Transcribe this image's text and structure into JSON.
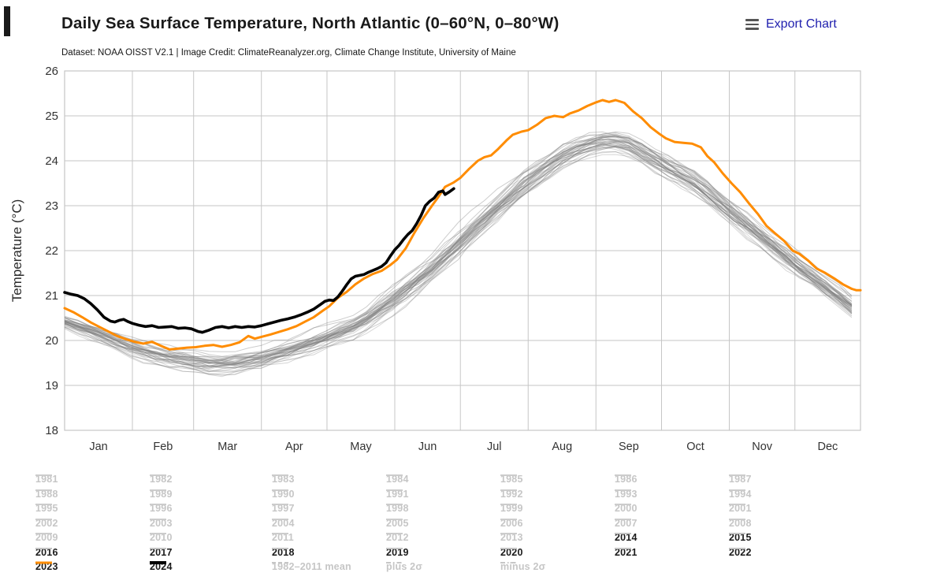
{
  "header": {
    "title": "Daily Sea Surface Temperature, North Atlantic (0–60°N, 0–80°W)",
    "subtitle": "Dataset: NOAA OISST V2.1 | Image Credit: ClimateReanalyzer.org, Climate Change Institute, University of Maine",
    "export_label": "Export Chart"
  },
  "chart_data": {
    "type": "line",
    "title": "Daily Sea Surface Temperature, North Atlantic (0–60°N, 0–80°W)",
    "xlabel": "",
    "ylabel": "Temperature (°C)",
    "ylim": [
      18,
      26
    ],
    "yticks": [
      18,
      19,
      20,
      21,
      22,
      23,
      24,
      25,
      26
    ],
    "xticklabels": [
      "Jan",
      "Feb",
      "Mar",
      "Apr",
      "May",
      "Jun",
      "Jul",
      "Aug",
      "Sep",
      "Oct",
      "Nov",
      "Dec"
    ],
    "month_start_days": [
      0,
      31,
      59,
      90,
      120,
      151,
      181,
      212,
      243,
      273,
      304,
      334,
      364
    ],
    "grid": true,
    "legend_position": "bottom",
    "colors": {
      "grid": "#c6c6c6",
      "axis_text": "#333333",
      "background_lines": "#c8c8c8",
      "y2023": "#ff8c00",
      "y2024": "#000000"
    },
    "series": [
      {
        "name": "2023",
        "color": "#ff8c00",
        "width": 3,
        "points": [
          [
            0,
            20.72
          ],
          [
            4,
            20.63
          ],
          [
            8,
            20.52
          ],
          [
            12,
            20.4
          ],
          [
            16,
            20.3
          ],
          [
            20,
            20.2
          ],
          [
            24,
            20.1
          ],
          [
            28,
            20.03
          ],
          [
            32,
            19.97
          ],
          [
            36,
            19.93
          ],
          [
            40,
            19.97
          ],
          [
            44,
            19.88
          ],
          [
            48,
            19.8
          ],
          [
            52,
            19.82
          ],
          [
            56,
            19.84
          ],
          [
            60,
            19.85
          ],
          [
            64,
            19.88
          ],
          [
            68,
            19.9
          ],
          [
            72,
            19.86
          ],
          [
            76,
            19.9
          ],
          [
            80,
            19.96
          ],
          [
            84,
            20.1
          ],
          [
            87,
            20.04
          ],
          [
            90,
            20.08
          ],
          [
            94,
            20.13
          ],
          [
            98,
            20.19
          ],
          [
            102,
            20.25
          ],
          [
            106,
            20.32
          ],
          [
            110,
            20.42
          ],
          [
            114,
            20.52
          ],
          [
            118,
            20.66
          ],
          [
            121,
            20.76
          ],
          [
            125,
            20.95
          ],
          [
            129,
            21.08
          ],
          [
            133,
            21.25
          ],
          [
            137,
            21.38
          ],
          [
            141,
            21.48
          ],
          [
            145,
            21.55
          ],
          [
            149,
            21.68
          ],
          [
            152,
            21.8
          ],
          [
            156,
            22.05
          ],
          [
            160,
            22.4
          ],
          [
            164,
            22.72
          ],
          [
            168,
            23.0
          ],
          [
            171,
            23.2
          ],
          [
            174,
            23.42
          ],
          [
            178,
            23.52
          ],
          [
            181,
            23.62
          ],
          [
            185,
            23.82
          ],
          [
            189,
            24.0
          ],
          [
            192,
            24.08
          ],
          [
            195,
            24.12
          ],
          [
            198,
            24.25
          ],
          [
            202,
            24.45
          ],
          [
            205,
            24.58
          ],
          [
            209,
            24.65
          ],
          [
            212,
            24.68
          ],
          [
            216,
            24.8
          ],
          [
            220,
            24.95
          ],
          [
            224,
            25.0
          ],
          [
            228,
            24.97
          ],
          [
            231,
            25.05
          ],
          [
            235,
            25.12
          ],
          [
            239,
            25.22
          ],
          [
            243,
            25.3
          ],
          [
            246,
            25.35
          ],
          [
            249,
            25.31
          ],
          [
            252,
            25.35
          ],
          [
            256,
            25.29
          ],
          [
            260,
            25.1
          ],
          [
            264,
            24.95
          ],
          [
            268,
            24.75
          ],
          [
            272,
            24.6
          ],
          [
            275,
            24.5
          ],
          [
            279,
            24.42
          ],
          [
            283,
            24.4
          ],
          [
            287,
            24.38
          ],
          [
            291,
            24.3
          ],
          [
            294,
            24.1
          ],
          [
            297,
            23.97
          ],
          [
            301,
            23.72
          ],
          [
            305,
            23.5
          ],
          [
            309,
            23.3
          ],
          [
            313,
            23.05
          ],
          [
            317,
            22.82
          ],
          [
            321,
            22.55
          ],
          [
            325,
            22.38
          ],
          [
            329,
            22.22
          ],
          [
            333,
            22.0
          ],
          [
            336,
            21.93
          ],
          [
            340,
            21.78
          ],
          [
            344,
            21.6
          ],
          [
            348,
            21.5
          ],
          [
            352,
            21.38
          ],
          [
            356,
            21.25
          ],
          [
            360,
            21.15
          ],
          [
            362,
            21.12
          ],
          [
            364,
            21.12
          ]
        ]
      },
      {
        "name": "2024",
        "color": "#000000",
        "width": 3.6,
        "points": [
          [
            0,
            21.07
          ],
          [
            3,
            21.03
          ],
          [
            6,
            21.0
          ],
          [
            9,
            20.93
          ],
          [
            12,
            20.82
          ],
          [
            15,
            20.68
          ],
          [
            18,
            20.52
          ],
          [
            21,
            20.43
          ],
          [
            23,
            20.41
          ],
          [
            25,
            20.45
          ],
          [
            27,
            20.47
          ],
          [
            29,
            20.42
          ],
          [
            31,
            20.38
          ],
          [
            34,
            20.34
          ],
          [
            37,
            20.31
          ],
          [
            40,
            20.33
          ],
          [
            43,
            20.29
          ],
          [
            46,
            20.3
          ],
          [
            49,
            20.31
          ],
          [
            52,
            20.27
          ],
          [
            55,
            20.28
          ],
          [
            58,
            20.26
          ],
          [
            61,
            20.2
          ],
          [
            63,
            20.18
          ],
          [
            66,
            20.23
          ],
          [
            69,
            20.29
          ],
          [
            72,
            20.31
          ],
          [
            75,
            20.28
          ],
          [
            78,
            20.31
          ],
          [
            81,
            20.29
          ],
          [
            84,
            20.31
          ],
          [
            87,
            20.3
          ],
          [
            90,
            20.33
          ],
          [
            93,
            20.37
          ],
          [
            96,
            20.41
          ],
          [
            99,
            20.45
          ],
          [
            102,
            20.48
          ],
          [
            105,
            20.52
          ],
          [
            108,
            20.57
          ],
          [
            111,
            20.63
          ],
          [
            114,
            20.7
          ],
          [
            117,
            20.8
          ],
          [
            119,
            20.87
          ],
          [
            121,
            20.9
          ],
          [
            123,
            20.89
          ],
          [
            125,
            20.97
          ],
          [
            127,
            21.1
          ],
          [
            129,
            21.24
          ],
          [
            131,
            21.37
          ],
          [
            133,
            21.43
          ],
          [
            135,
            21.45
          ],
          [
            137,
            21.47
          ],
          [
            139,
            21.52
          ],
          [
            141,
            21.56
          ],
          [
            143,
            21.6
          ],
          [
            145,
            21.65
          ],
          [
            147,
            21.73
          ],
          [
            149,
            21.88
          ],
          [
            151,
            22.02
          ],
          [
            153,
            22.12
          ],
          [
            155,
            22.25
          ],
          [
            157,
            22.36
          ],
          [
            159,
            22.45
          ],
          [
            161,
            22.6
          ],
          [
            163,
            22.78
          ],
          [
            165,
            23.0
          ],
          [
            167,
            23.1
          ],
          [
            169,
            23.17
          ],
          [
            171,
            23.3
          ],
          [
            173,
            23.33
          ],
          [
            174,
            23.25
          ],
          [
            176,
            23.31
          ],
          [
            178,
            23.38
          ]
        ]
      }
    ],
    "background_years": {
      "years": [
        1981,
        1982,
        1983,
        1984,
        1985,
        1986,
        1987,
        1988,
        1989,
        1990,
        1991,
        1992,
        1993,
        1994,
        1995,
        1996,
        1997,
        1998,
        1999,
        2000,
        2001,
        2002,
        2003,
        2004,
        2005,
        2006,
        2007,
        2008,
        2009,
        2010,
        2011,
        2012,
        2013,
        2014,
        2015,
        2016,
        2017,
        2018,
        2019,
        2020,
        2021,
        2022
      ],
      "envelope": {
        "days": [
          0,
          15,
          31,
          45,
          59,
          68,
          80,
          90,
          105,
          120,
          135,
          151,
          166,
          181,
          196,
          212,
          227,
          243,
          250,
          258,
          273,
          288,
          304,
          319,
          334,
          349,
          364
        ],
        "min": [
          20.2,
          19.9,
          19.55,
          19.35,
          19.22,
          19.15,
          19.2,
          19.3,
          19.5,
          19.75,
          20.0,
          20.55,
          21.1,
          21.8,
          22.5,
          23.15,
          23.7,
          24.1,
          24.15,
          24.05,
          23.6,
          23.15,
          22.55,
          21.95,
          21.35,
          20.85,
          20.3
        ],
        "max": [
          20.68,
          20.45,
          20.2,
          20.0,
          19.9,
          19.85,
          19.9,
          19.95,
          20.15,
          20.45,
          20.8,
          21.4,
          22.0,
          22.7,
          23.35,
          24.05,
          24.5,
          24.8,
          24.85,
          24.75,
          24.4,
          24.0,
          23.35,
          22.75,
          22.15,
          21.55,
          20.95
        ]
      }
    },
    "legend_styles": {
      "old": {
        "swatch_color": "#cccccc",
        "label_color": "#c6c6c6",
        "dash": "solid",
        "swatch_width": 2
      },
      "recent": {
        "swatch_color": "#c2c2c2",
        "label_color": "#1a1a1a",
        "dash": "solid",
        "swatch_width": 2
      },
      "y2023": {
        "swatch_color": "#ff8c00",
        "label_color": "#1a1a1a",
        "dash": "solid",
        "swatch_width": 3
      },
      "y2024": {
        "swatch_color": "#000000",
        "label_color": "#1a1a1a",
        "dash": "solid",
        "swatch_width": 4
      },
      "mean": {
        "swatch_color": "#c6c6c6",
        "label_color": "#c6c6c6",
        "dash": "dashed",
        "swatch_width": 2
      },
      "sigma": {
        "swatch_color": "#c6c6c6",
        "label_color": "#c6c6c6",
        "dash": "dashdot",
        "swatch_width": 2
      }
    },
    "legend_rows": [
      [
        {
          "label": "1981",
          "style": "old"
        },
        {
          "label": "1982",
          "style": "old"
        },
        {
          "label": "1983",
          "style": "old"
        },
        {
          "label": "1984",
          "style": "old"
        },
        {
          "label": "1985",
          "style": "old"
        },
        {
          "label": "1986",
          "style": "old"
        },
        {
          "label": "1987",
          "style": "old"
        }
      ],
      [
        {
          "label": "1988",
          "style": "old"
        },
        {
          "label": "1989",
          "style": "old"
        },
        {
          "label": "1990",
          "style": "old"
        },
        {
          "label": "1991",
          "style": "old"
        },
        {
          "label": "1992",
          "style": "old"
        },
        {
          "label": "1993",
          "style": "old"
        },
        {
          "label": "1994",
          "style": "old"
        }
      ],
      [
        {
          "label": "1995",
          "style": "old"
        },
        {
          "label": "1996",
          "style": "old"
        },
        {
          "label": "1997",
          "style": "old"
        },
        {
          "label": "1998",
          "style": "old"
        },
        {
          "label": "1999",
          "style": "old"
        },
        {
          "label": "2000",
          "style": "old"
        },
        {
          "label": "2001",
          "style": "old"
        }
      ],
      [
        {
          "label": "2002",
          "style": "old"
        },
        {
          "label": "2003",
          "style": "old"
        },
        {
          "label": "2004",
          "style": "old"
        },
        {
          "label": "2005",
          "style": "old"
        },
        {
          "label": "2006",
          "style": "old"
        },
        {
          "label": "2007",
          "style": "old"
        },
        {
          "label": "2008",
          "style": "old"
        }
      ],
      [
        {
          "label": "2009",
          "style": "old"
        },
        {
          "label": "2010",
          "style": "old"
        },
        {
          "label": "2011",
          "style": "old"
        },
        {
          "label": "2012",
          "style": "old"
        },
        {
          "label": "2013",
          "style": "old"
        },
        {
          "label": "2014",
          "style": "recent"
        },
        {
          "label": "2015",
          "style": "recent"
        }
      ],
      [
        {
          "label": "2016",
          "style": "recent"
        },
        {
          "label": "2017",
          "style": "recent"
        },
        {
          "label": "2018",
          "style": "recent"
        },
        {
          "label": "2019",
          "style": "recent"
        },
        {
          "label": "2020",
          "style": "recent"
        },
        {
          "label": "2021",
          "style": "recent"
        },
        {
          "label": "2022",
          "style": "recent"
        }
      ],
      [
        {
          "label": "2023",
          "style": "y2023"
        },
        {
          "label": "2024",
          "style": "y2024"
        },
        {
          "label": "1982–2011 mean",
          "style": "mean"
        },
        {
          "label": "plus 2σ",
          "style": "sigma"
        },
        {
          "label": "minus 2σ",
          "style": "sigma"
        }
      ]
    ]
  }
}
